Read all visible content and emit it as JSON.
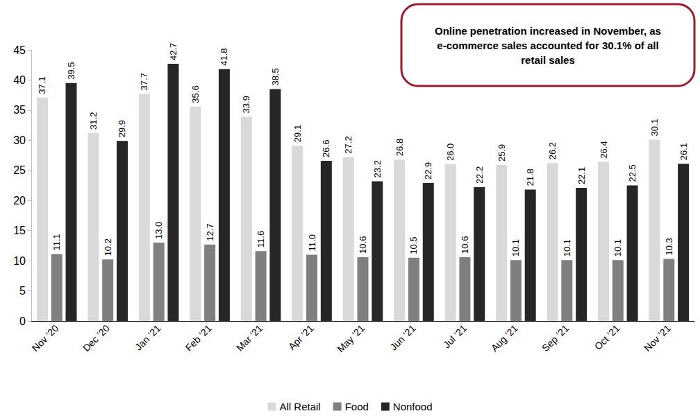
{
  "chart_data": {
    "type": "bar",
    "annotation": "Online penetration increased in November, as e-commerce sales accounted for 30.1% of all retail sales",
    "categories": [
      "Nov ’20",
      "Dec ’20",
      "Jan ’21",
      "Feb ’21",
      "Mar ’21",
      "Apr ’21",
      "May ’21",
      "Jun ’21",
      "Jul ’21",
      "Aug ’21",
      "Sep ’21",
      "Oct ’21",
      "Nov ’21"
    ],
    "series": [
      {
        "name": "All Retail",
        "color": "#d9d9d9",
        "values": [
          37.1,
          31.2,
          37.7,
          35.6,
          33.9,
          29.1,
          27.2,
          26.8,
          26.0,
          25.9,
          26.2,
          26.4,
          30.1
        ],
        "value_labels": [
          "37.1",
          "31.2",
          "37.7",
          "35.6",
          "33.9",
          "29.1",
          "27.2",
          "26.8",
          "26.0",
          "25.9",
          "26.2",
          "26.4",
          "30.1"
        ]
      },
      {
        "name": "Food",
        "color": "#7f7f7f",
        "values": [
          11.1,
          10.2,
          13.0,
          12.7,
          11.6,
          11.0,
          10.6,
          10.5,
          10.6,
          10.1,
          10.1,
          10.1,
          10.3
        ],
        "value_labels": [
          "11.1",
          "10.2",
          "13.0",
          "12.7",
          "11.6",
          "11.0",
          "10.6",
          "10.5",
          "10.6",
          "10.1",
          "10.1",
          "10.1",
          "10.3"
        ]
      },
      {
        "name": "Nonfood",
        "color": "#262626",
        "values": [
          39.5,
          29.9,
          42.7,
          41.8,
          38.5,
          26.6,
          23.2,
          22.9,
          22.2,
          21.8,
          22.1,
          22.5,
          26.1
        ],
        "value_labels": [
          "39.5",
          "29.9",
          "42.7",
          "41.8",
          "38.5",
          "26.6",
          "23.2",
          "22.9",
          "22.2",
          "21.8",
          "22.1",
          "22.5",
          "26.1"
        ]
      }
    ],
    "ylim": [
      0,
      45
    ],
    "yticks": [
      0,
      5,
      10,
      15,
      20,
      25,
      30,
      35,
      40,
      45
    ],
    "grid": false,
    "legend": "bottom",
    "data_labels": true
  }
}
